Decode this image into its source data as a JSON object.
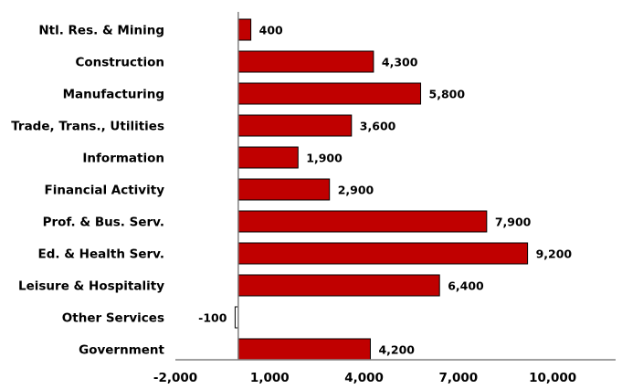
{
  "chart_data": {
    "type": "bar",
    "orientation": "horizontal",
    "categories": [
      "Ntl. Res. & Mining",
      "Construction",
      "Manufacturing",
      "Trade, Trans., Utilities",
      "Information",
      "Financial Activity",
      "Prof. & Bus. Serv.",
      "Ed. & Health Serv.",
      "Leisure & Hospitality",
      "Other Services",
      "Government"
    ],
    "values": [
      400,
      4300,
      5800,
      3600,
      1900,
      2900,
      7900,
      9200,
      6400,
      -100,
      4200
    ],
    "value_labels": [
      "400",
      "4,300",
      "5,800",
      "3,600",
      "1,900",
      "2,900",
      "7,900",
      "9,200",
      "6,400",
      "-100",
      "4,200"
    ],
    "xlim": [
      -2000,
      12000
    ],
    "xticks": [
      -2000,
      1000,
      4000,
      7000,
      10000
    ],
    "xtick_labels": [
      "-2,000",
      "1,000",
      "4,000",
      "7,000",
      "10,000"
    ],
    "title": "",
    "xlabel": "",
    "ylabel": "",
    "grid": false,
    "legend": "none",
    "colors": {
      "positive_bar": "#c00000",
      "negative_bar": "#ffffff",
      "bar_outline": "#000000",
      "zero_axis": "#808080"
    }
  }
}
